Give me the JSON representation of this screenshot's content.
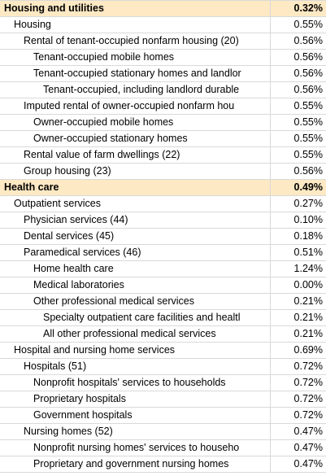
{
  "rows": [
    {
      "label": "Housing and utilities",
      "value": "0.32%"
    },
    {
      "label": "Housing",
      "value": "0.55%"
    },
    {
      "label": "Rental of tenant-occupied nonfarm housing (20)",
      "value": "0.56%"
    },
    {
      "label": "Tenant-occupied mobile homes",
      "value": "0.56%"
    },
    {
      "label": "Tenant-occupied stationary homes and landlor",
      "value": "0.56%"
    },
    {
      "label": "Tenant-occupied, including landlord durable",
      "value": "0.56%"
    },
    {
      "label": "Imputed rental of owner-occupied nonfarm hou",
      "value": "0.55%"
    },
    {
      "label": "Owner-occupied mobile homes",
      "value": "0.55%"
    },
    {
      "label": "Owner-occupied stationary homes",
      "value": "0.55%"
    },
    {
      "label": "Rental value of farm dwellings (22)",
      "value": "0.55%"
    },
    {
      "label": "Group housing (23)",
      "value": "0.56%"
    },
    {
      "label": "Health care",
      "value": "0.49%"
    },
    {
      "label": "Outpatient services",
      "value": "0.27%"
    },
    {
      "label": "Physician services (44)",
      "value": "0.10%"
    },
    {
      "label": "Dental services (45)",
      "value": "0.18%"
    },
    {
      "label": "Paramedical services (46)",
      "value": "0.51%"
    },
    {
      "label": "Home health care",
      "value": "1.24%"
    },
    {
      "label": "Medical laboratories",
      "value": "0.00%"
    },
    {
      "label": "Other professional medical services",
      "value": "0.21%"
    },
    {
      "label": "Specialty outpatient care facilities and healtl",
      "value": "0.21%"
    },
    {
      "label": "All other professional medical services",
      "value": "0.21%"
    },
    {
      "label": "Hospital and nursing home services",
      "value": "0.69%"
    },
    {
      "label": "Hospitals (51)",
      "value": "0.72%"
    },
    {
      "label": "Nonprofit hospitals' services to households",
      "value": "0.72%"
    },
    {
      "label": "Proprietary hospitals",
      "value": "0.72%"
    },
    {
      "label": "Government hospitals",
      "value": "0.72%"
    },
    {
      "label": "Nursing homes (52)",
      "value": "0.47%"
    },
    {
      "label": "Nonprofit nursing homes' services to househo",
      "value": "0.47%"
    },
    {
      "label": "Proprietary and government nursing homes",
      "value": "0.47%"
    }
  ],
  "colors": {
    "section_fill": "#fde9c4",
    "gridline": "#d9d9d9"
  }
}
